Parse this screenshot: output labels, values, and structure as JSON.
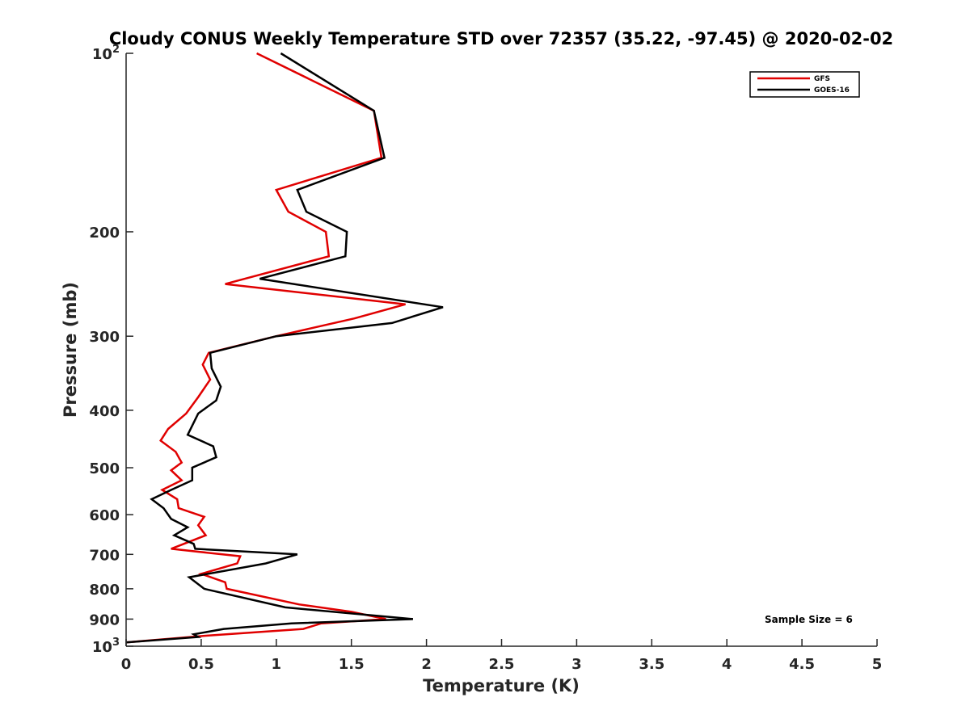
{
  "chart_data": {
    "type": "line",
    "title": "Cloudy CONUS Weekly Temperature STD over 72357 (35.22, -97.45) @ 2020-02-02",
    "xlabel": "Temperature (K)",
    "ylabel": "Pressure (mb)",
    "xlim": [
      0,
      5
    ],
    "ylim": [
      100,
      1000
    ],
    "y_scale": "log",
    "y_reversed": true,
    "grid": false,
    "legend_position": "top-right",
    "x_ticks": [
      {
        "value": 0,
        "label": "0"
      },
      {
        "value": 0.5,
        "label": "0.5"
      },
      {
        "value": 1,
        "label": "1"
      },
      {
        "value": 1.5,
        "label": "1.5"
      },
      {
        "value": 2,
        "label": "2"
      },
      {
        "value": 2.5,
        "label": "2.5"
      },
      {
        "value": 3,
        "label": "3"
      },
      {
        "value": 3.5,
        "label": "3.5"
      },
      {
        "value": 4,
        "label": "4"
      },
      {
        "value": 4.5,
        "label": "4.5"
      },
      {
        "value": 5,
        "label": "5"
      }
    ],
    "y_ticks": [
      {
        "value": 100,
        "base": "10",
        "exp": "2"
      },
      {
        "value": 200,
        "label": "200"
      },
      {
        "value": 300,
        "label": "300"
      },
      {
        "value": 400,
        "label": "400"
      },
      {
        "value": 500,
        "label": "500"
      },
      {
        "value": 600,
        "label": "600"
      },
      {
        "value": 700,
        "label": "700"
      },
      {
        "value": 800,
        "label": "800"
      },
      {
        "value": 900,
        "label": "900"
      },
      {
        "value": 1000,
        "base": "10",
        "exp": "3"
      }
    ],
    "series": [
      {
        "name": "GFS",
        "color": "#e00000",
        "points": [
          {
            "x": 0.87,
            "y": 100
          },
          {
            "x": 1.65,
            "y": 125
          },
          {
            "x": 1.7,
            "y": 150
          },
          {
            "x": 1.0,
            "y": 170
          },
          {
            "x": 1.08,
            "y": 185
          },
          {
            "x": 1.33,
            "y": 200
          },
          {
            "x": 1.35,
            "y": 220
          },
          {
            "x": 0.66,
            "y": 245
          },
          {
            "x": 1.86,
            "y": 265
          },
          {
            "x": 1.52,
            "y": 280
          },
          {
            "x": 1.0,
            "y": 300
          },
          {
            "x": 0.55,
            "y": 320
          },
          {
            "x": 0.51,
            "y": 335
          },
          {
            "x": 0.56,
            "y": 355
          },
          {
            "x": 0.48,
            "y": 380
          },
          {
            "x": 0.4,
            "y": 405
          },
          {
            "x": 0.28,
            "y": 430
          },
          {
            "x": 0.23,
            "y": 450
          },
          {
            "x": 0.33,
            "y": 470
          },
          {
            "x": 0.37,
            "y": 490
          },
          {
            "x": 0.3,
            "y": 505
          },
          {
            "x": 0.37,
            "y": 525
          },
          {
            "x": 0.24,
            "y": 545
          },
          {
            "x": 0.34,
            "y": 565
          },
          {
            "x": 0.35,
            "y": 585
          },
          {
            "x": 0.52,
            "y": 605
          },
          {
            "x": 0.48,
            "y": 625
          },
          {
            "x": 0.53,
            "y": 650
          },
          {
            "x": 0.3,
            "y": 685
          },
          {
            "x": 0.76,
            "y": 705
          },
          {
            "x": 0.74,
            "y": 725
          },
          {
            "x": 0.5,
            "y": 755
          },
          {
            "x": 0.66,
            "y": 780
          },
          {
            "x": 0.67,
            "y": 800
          },
          {
            "x": 1.15,
            "y": 850
          },
          {
            "x": 1.5,
            "y": 875
          },
          {
            "x": 1.73,
            "y": 900
          },
          {
            "x": 1.3,
            "y": 915
          },
          {
            "x": 1.18,
            "y": 935
          },
          {
            "x": 0.53,
            "y": 960
          },
          {
            "x": 0.0,
            "y": 985
          }
        ]
      },
      {
        "name": "GOES-16",
        "color": "#000000",
        "points": [
          {
            "x": 1.03,
            "y": 100
          },
          {
            "x": 1.65,
            "y": 125
          },
          {
            "x": 1.72,
            "y": 150
          },
          {
            "x": 1.14,
            "y": 170
          },
          {
            "x": 1.2,
            "y": 185
          },
          {
            "x": 1.47,
            "y": 200
          },
          {
            "x": 1.46,
            "y": 220
          },
          {
            "x": 0.89,
            "y": 240
          },
          {
            "x": 2.11,
            "y": 268
          },
          {
            "x": 1.77,
            "y": 285
          },
          {
            "x": 1.0,
            "y": 300
          },
          {
            "x": 0.56,
            "y": 320
          },
          {
            "x": 0.57,
            "y": 340
          },
          {
            "x": 0.63,
            "y": 365
          },
          {
            "x": 0.6,
            "y": 385
          },
          {
            "x": 0.48,
            "y": 405
          },
          {
            "x": 0.41,
            "y": 440
          },
          {
            "x": 0.58,
            "y": 460
          },
          {
            "x": 0.6,
            "y": 480
          },
          {
            "x": 0.44,
            "y": 500
          },
          {
            "x": 0.44,
            "y": 525
          },
          {
            "x": 0.3,
            "y": 545
          },
          {
            "x": 0.17,
            "y": 565
          },
          {
            "x": 0.25,
            "y": 585
          },
          {
            "x": 0.3,
            "y": 610
          },
          {
            "x": 0.41,
            "y": 630
          },
          {
            "x": 0.32,
            "y": 650
          },
          {
            "x": 0.45,
            "y": 672
          },
          {
            "x": 0.46,
            "y": 685
          },
          {
            "x": 1.14,
            "y": 700
          },
          {
            "x": 0.93,
            "y": 725
          },
          {
            "x": 0.42,
            "y": 765
          },
          {
            "x": 0.52,
            "y": 800
          },
          {
            "x": 1.06,
            "y": 860
          },
          {
            "x": 1.91,
            "y": 900
          },
          {
            "x": 1.1,
            "y": 915
          },
          {
            "x": 0.65,
            "y": 935
          },
          {
            "x": 0.45,
            "y": 955
          },
          {
            "x": 0.48,
            "y": 965
          },
          {
            "x": 0.0,
            "y": 985
          }
        ]
      }
    ],
    "annotation": "Sample Size = 6"
  }
}
